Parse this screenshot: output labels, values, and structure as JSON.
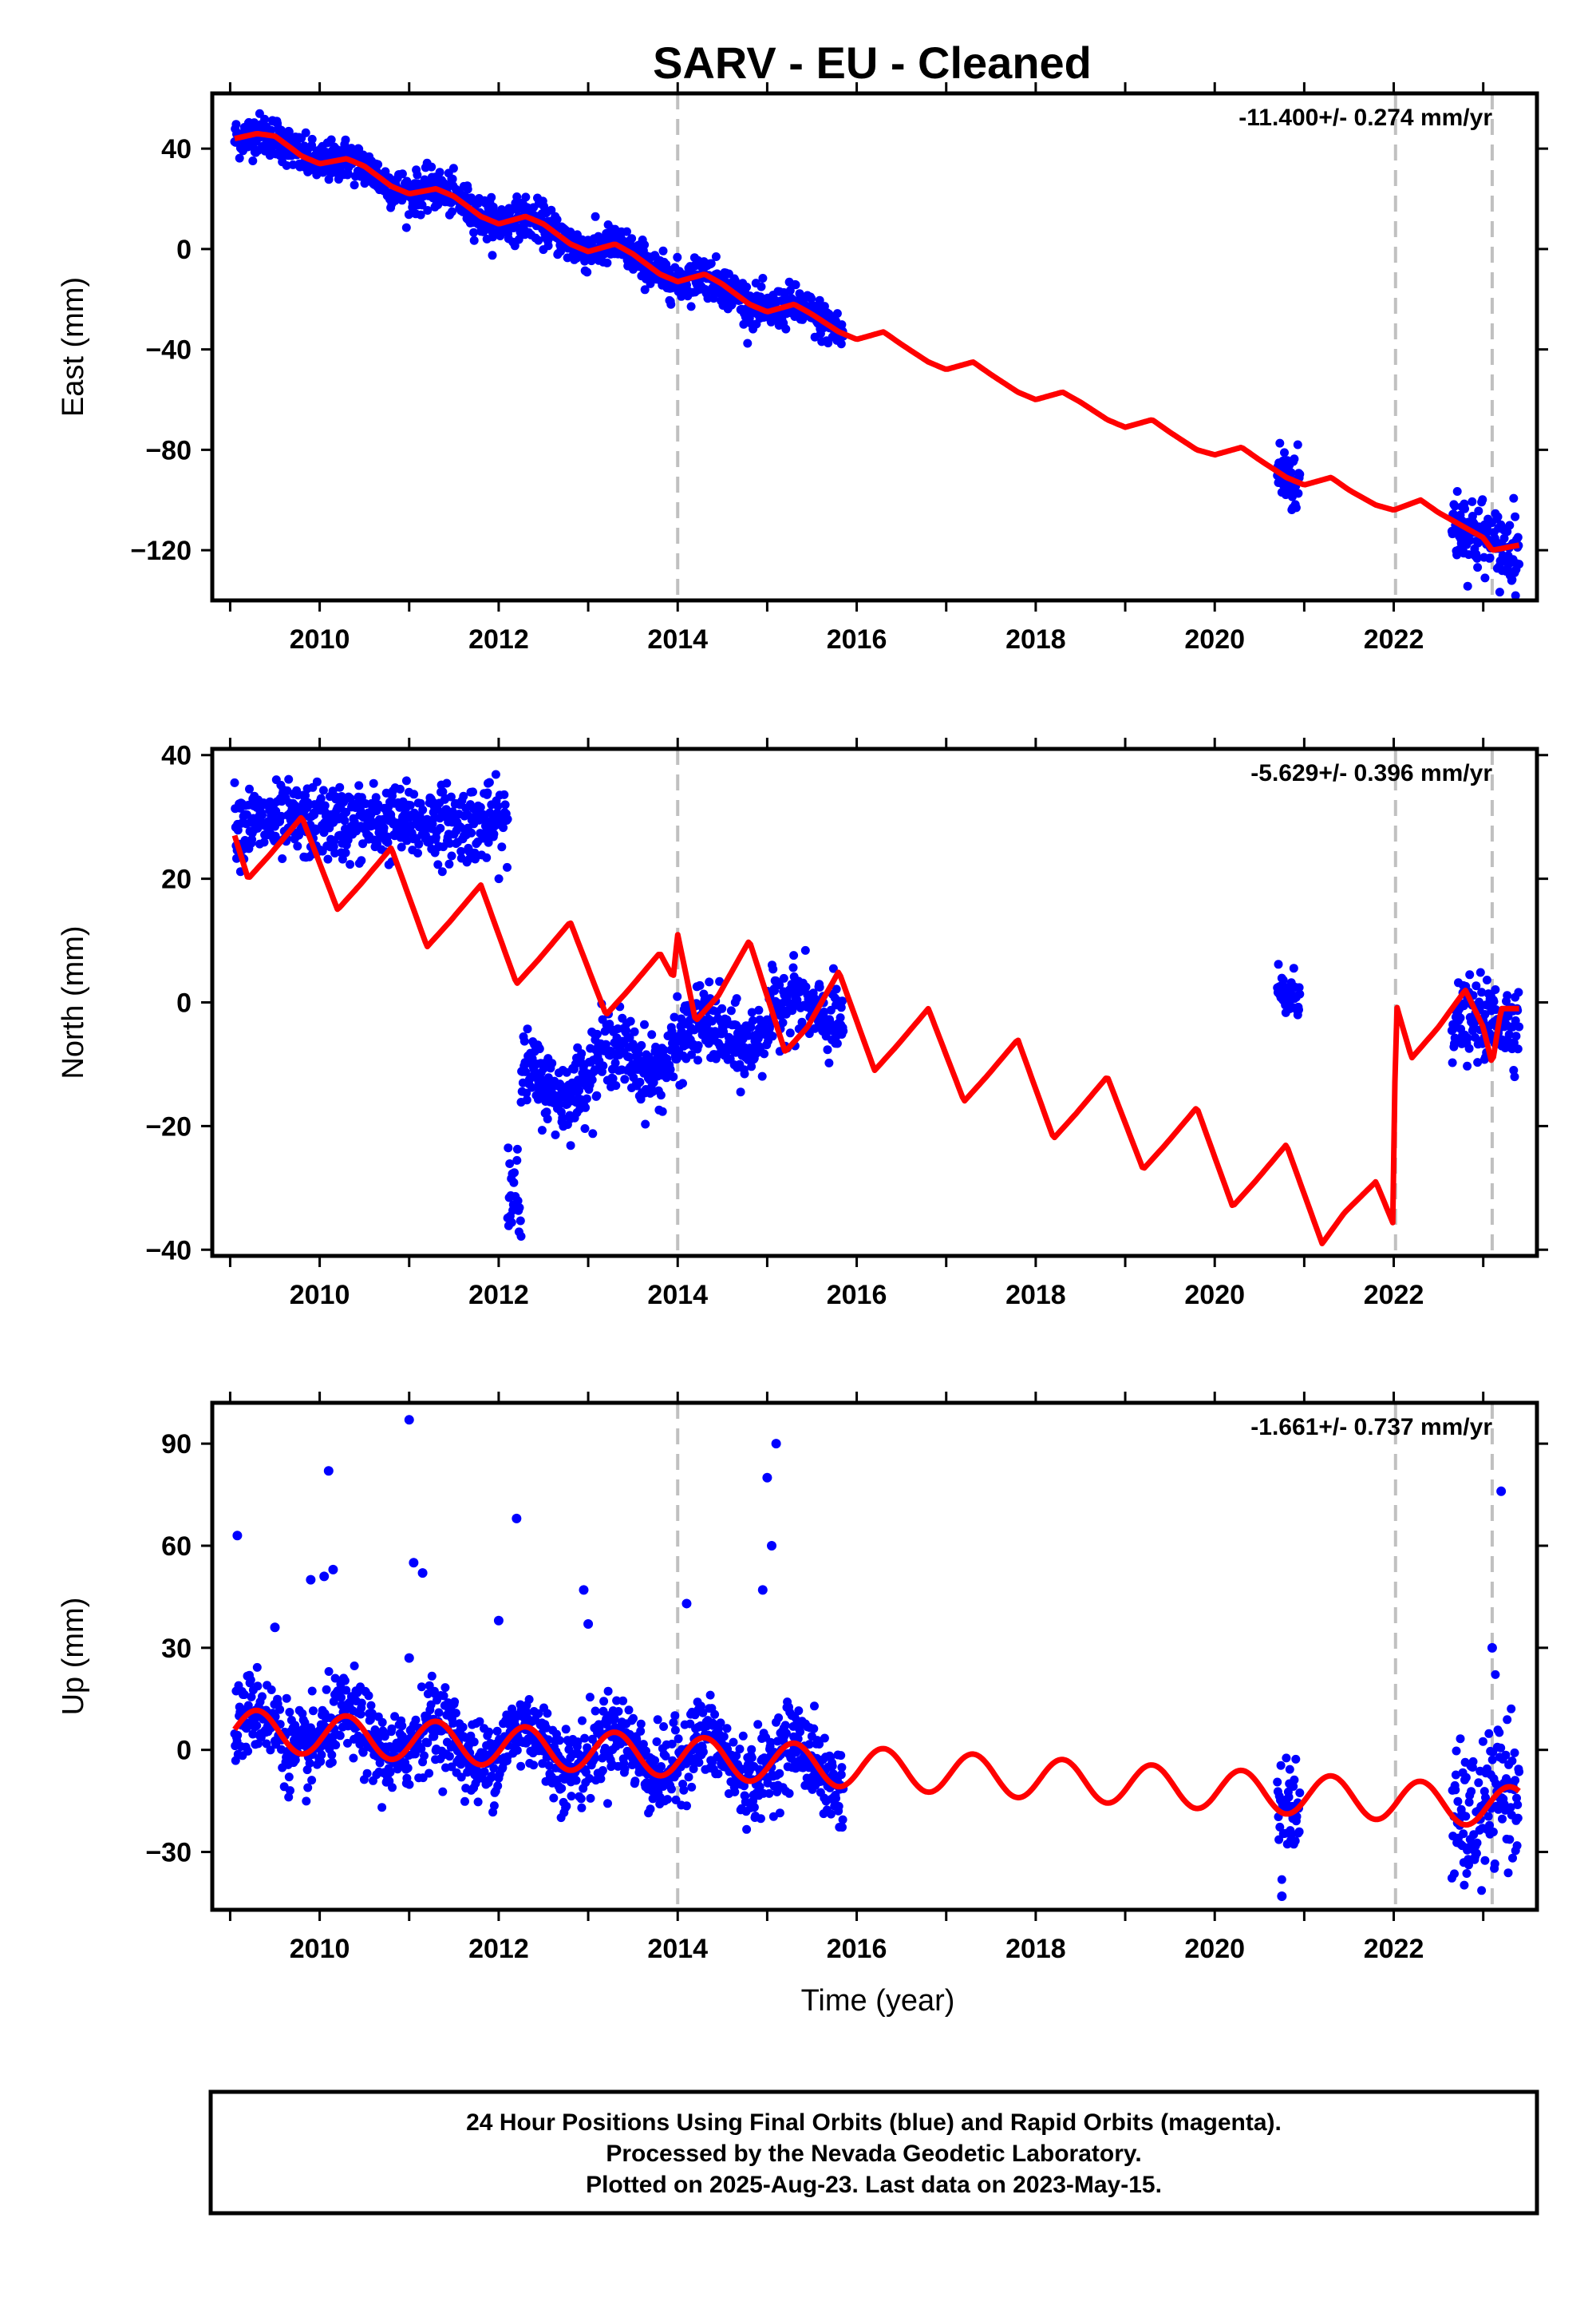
{
  "title": "SARV  - EU - Cleaned",
  "footer": {
    "lines": [
      "24 Hour Positions Using Final Orbits (blue) and Rapid Orbits (magenta).",
      "Processed by the Nevada Geodetic Laboratory.",
      "Plotted on 2025-Aug-23. Last data on 2023-May-15."
    ]
  },
  "colors": {
    "data_points": "#0000ff",
    "model_line": "#ff0000",
    "event_lines": "#c0c0c0"
  },
  "chart_data": [
    {
      "type": "scatter",
      "name": "east",
      "ylabel": "East (mm)",
      "xlabel": "",
      "rate_text": "-11.400+/- 0.274 mm/yr",
      "xlim": [
        2008.8,
        2023.6
      ],
      "ylim": [
        -140,
        62
      ],
      "xticks": [
        2010,
        2012,
        2014,
        2016,
        2018,
        2020,
        2022
      ],
      "yticks": [
        40,
        0,
        -40,
        -80,
        -120
      ],
      "event_lines": [
        2014.0,
        2022.02,
        2023.1
      ],
      "model": {
        "x": [
          2009.05,
          2009.3,
          2009.5,
          2009.8,
          2010.0,
          2010.3,
          2010.5,
          2010.8,
          2011.0,
          2011.3,
          2011.5,
          2011.8,
          2012.0,
          2012.3,
          2012.5,
          2012.8,
          2013.0,
          2013.3,
          2013.5,
          2013.8,
          2014.0,
          2014.3,
          2014.5,
          2014.8,
          2015.0,
          2015.3,
          2015.5,
          2015.8,
          2016.0,
          2016.3,
          2016.5,
          2016.8,
          2017.0,
          2017.3,
          2017.5,
          2017.8,
          2018.0,
          2018.3,
          2018.5,
          2018.8,
          2019.0,
          2019.3,
          2019.5,
          2019.8,
          2020.0,
          2020.3,
          2020.5,
          2020.8,
          2021.0,
          2021.3,
          2021.5,
          2021.8,
          2022.0,
          2022.3,
          2022.5,
          2022.8,
          2023.0,
          2023.1,
          2023.4
        ],
        "y": [
          44,
          46,
          45,
          37,
          34,
          36,
          33,
          25,
          22,
          24,
          21,
          13,
          10,
          13,
          10,
          2,
          -1,
          2,
          -2,
          -10,
          -13,
          -10,
          -14,
          -22,
          -25,
          -22,
          -26,
          -33,
          -36,
          -33,
          -38,
          -45,
          -48,
          -45,
          -50,
          -57,
          -60,
          -57,
          -61,
          -68,
          -71,
          -68,
          -73,
          -80,
          -82,
          -79,
          -84,
          -91,
          -94,
          -91,
          -96,
          -102,
          -104,
          -100,
          -105,
          -111,
          -115,
          -120,
          -118
        ]
      },
      "observed": [
        {
          "x_start": 2009.05,
          "x_end": 2015.85,
          "spread": 4
        },
        {
          "x_start": 2020.7,
          "x_end": 2020.95,
          "spread": 7
        },
        {
          "x_start": 2022.65,
          "x_end": 2023.4,
          "spread": 8
        }
      ]
    },
    {
      "type": "scatter",
      "name": "north",
      "ylabel": "North (mm)",
      "xlabel": "",
      "rate_text": "-5.629+/- 0.396 mm/yr",
      "xlim": [
        2008.8,
        2023.6
      ],
      "ylim": [
        -41,
        41
      ],
      "xticks": [
        2010,
        2012,
        2014,
        2016,
        2018,
        2020,
        2022
      ],
      "yticks": [
        40,
        20,
        0,
        -20,
        -40
      ],
      "event_lines": [
        2014.0,
        2022.02,
        2023.1
      ],
      "model": {
        "x": [
          2009.05,
          2009.2,
          2009.45,
          2009.8,
          2010.2,
          2010.45,
          2010.8,
          2011.2,
          2011.45,
          2011.8,
          2012.2,
          2012.45,
          2012.8,
          2013.2,
          2013.45,
          2013.8,
          2013.95,
          2014.0,
          2014.2,
          2014.45,
          2014.8,
          2015.2,
          2015.45,
          2015.8,
          2016.2,
          2016.45,
          2016.8,
          2017.2,
          2017.45,
          2017.8,
          2018.2,
          2018.45,
          2018.8,
          2019.2,
          2019.45,
          2019.8,
          2020.2,
          2020.45,
          2020.8,
          2021.2,
          2021.45,
          2021.8,
          2022.0,
          2022.02,
          2022.2,
          2022.5,
          2022.8,
          2023.0,
          2023.1,
          2023.2,
          2023.4
        ],
        "y": [
          27,
          20,
          24,
          30,
          15,
          19,
          25,
          9,
          13,
          19,
          3,
          7,
          13,
          -2,
          2,
          8,
          4,
          11,
          -3,
          1,
          10,
          -8,
          -4,
          5,
          -11,
          -7,
          -1,
          -16,
          -12,
          -6,
          -22,
          -18,
          -12,
          -27,
          -23,
          -17,
          -33,
          -29,
          -23,
          -39,
          -34,
          -29,
          -36,
          0,
          -9,
          -4,
          2,
          -4,
          -10,
          -1,
          -1
        ]
      },
      "observed": [
        {
          "x_start": 2009.05,
          "x_end": 2012.1,
          "level": 29,
          "spread": 3
        },
        {
          "x_start": 2012.1,
          "x_end": 2012.25,
          "level": -30,
          "spread": 7
        },
        {
          "x_start": 2012.25,
          "x_end": 2015.85,
          "level_start": -14,
          "level_end": 0,
          "spread": 3
        },
        {
          "x_start": 2020.7,
          "x_end": 2020.95,
          "level": 1,
          "spread": 2
        },
        {
          "x_start": 2022.65,
          "x_end": 2023.4,
          "level": -3,
          "spread": 3
        }
      ]
    },
    {
      "type": "scatter",
      "name": "up",
      "ylabel": "Up (mm)",
      "xlabel": "Time (year)",
      "rate_text": "-1.661+/- 0.737 mm/yr",
      "xlim": [
        2008.8,
        2023.6
      ],
      "ylim": [
        -47,
        102
      ],
      "xticks": [
        2010,
        2012,
        2014,
        2016,
        2018,
        2020,
        2022
      ],
      "yticks": [
        90,
        60,
        30,
        0,
        -30
      ],
      "event_lines": [
        2014.0,
        2022.02,
        2023.1
      ],
      "model": {
        "amplitude": 6,
        "period_years": 1.0,
        "x_start": 2009.05,
        "x_end": 2023.4,
        "y_start": 6,
        "y_end": -17
      },
      "observed": [
        {
          "x_start": 2009.05,
          "x_end": 2015.85,
          "spread": 6
        },
        {
          "x_start": 2020.7,
          "x_end": 2020.95,
          "spread": 8
        },
        {
          "x_start": 2022.65,
          "x_end": 2023.4,
          "spread": 10
        }
      ],
      "outliers": [
        {
          "x": 2009.08,
          "y": 63
        },
        {
          "x": 2009.5,
          "y": 36
        },
        {
          "x": 2009.9,
          "y": 50
        },
        {
          "x": 2010.05,
          "y": 51
        },
        {
          "x": 2010.1,
          "y": 82
        },
        {
          "x": 2010.15,
          "y": 53
        },
        {
          "x": 2011.0,
          "y": 97
        },
        {
          "x": 2011.05,
          "y": 55
        },
        {
          "x": 2011.15,
          "y": 52
        },
        {
          "x": 2011.0,
          "y": 27
        },
        {
          "x": 2012.0,
          "y": 38
        },
        {
          "x": 2012.2,
          "y": 68
        },
        {
          "x": 2012.95,
          "y": 47
        },
        {
          "x": 2013.0,
          "y": 37
        },
        {
          "x": 2014.1,
          "y": 43
        },
        {
          "x": 2015.0,
          "y": 80
        },
        {
          "x": 2015.1,
          "y": 90
        },
        {
          "x": 2015.05,
          "y": 60
        },
        {
          "x": 2014.95,
          "y": 47
        },
        {
          "x": 2020.75,
          "y": -43
        },
        {
          "x": 2023.2,
          "y": 76
        },
        {
          "x": 2023.1,
          "y": 30
        }
      ]
    }
  ]
}
